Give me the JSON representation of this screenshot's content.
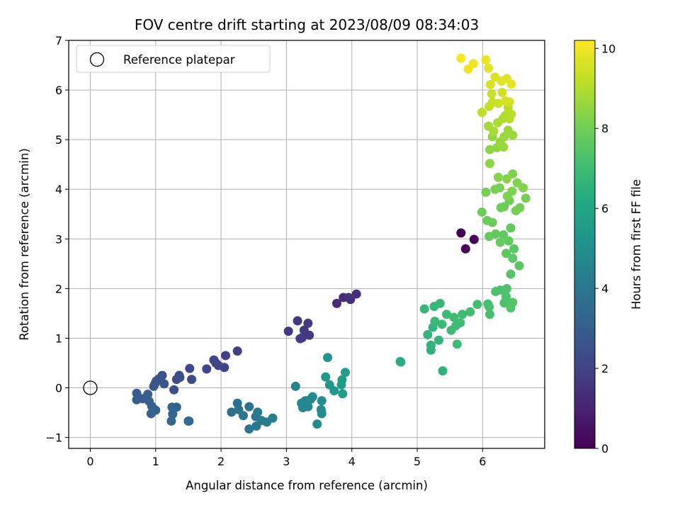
{
  "chart_data": {
    "type": "scatter",
    "title": "FOV centre drift starting at 2023/08/09 08:34:03",
    "xlabel": "Angular distance from reference (arcmin)",
    "ylabel": "Rotation from reference (arcmin)",
    "xlim": [
      -0.33,
      6.95
    ],
    "ylim": [
      -1.22,
      7.0
    ],
    "xticks": [
      0,
      1,
      2,
      3,
      4,
      5,
      6
    ],
    "yticks": [
      -1,
      0,
      1,
      2,
      3,
      4,
      5,
      6,
      7
    ],
    "grid": true,
    "legend": {
      "placement": "top-left",
      "entries": [
        "Reference platepar"
      ]
    },
    "reference_point": {
      "x": 0,
      "y": 0,
      "label": "Reference platepar"
    },
    "colorbar": {
      "label": "Hours from first FF file",
      "colormap": "viridis",
      "range": [
        0,
        10.2
      ],
      "ticks": [
        0,
        2,
        4,
        6,
        8,
        10
      ]
    },
    "points": [
      {
        "x": 5.67,
        "y": 3.12,
        "t": 0.0
      },
      {
        "x": 5.74,
        "y": 2.8,
        "t": 0.05
      },
      {
        "x": 5.87,
        "y": 2.99,
        "t": 0.1
      },
      {
        "x": 3.77,
        "y": 1.7,
        "t": 1.2
      },
      {
        "x": 3.87,
        "y": 1.82,
        "t": 1.25
      },
      {
        "x": 3.98,
        "y": 1.78,
        "t": 1.3
      },
      {
        "x": 4.07,
        "y": 1.89,
        "t": 1.35
      },
      {
        "x": 3.95,
        "y": 1.82,
        "t": 1.4
      },
      {
        "x": 3.03,
        "y": 1.14,
        "t": 1.6
      },
      {
        "x": 3.17,
        "y": 1.35,
        "t": 1.62
      },
      {
        "x": 3.24,
        "y": 1.01,
        "t": 1.65
      },
      {
        "x": 3.27,
        "y": 1.16,
        "t": 1.7
      },
      {
        "x": 3.33,
        "y": 1.3,
        "t": 1.72
      },
      {
        "x": 3.35,
        "y": 1.06,
        "t": 1.75
      },
      {
        "x": 3.21,
        "y": 0.99,
        "t": 1.8
      },
      {
        "x": 2.25,
        "y": 0.74,
        "t": 1.9
      },
      {
        "x": 2.07,
        "y": 0.65,
        "t": 1.95
      },
      {
        "x": 2.05,
        "y": 0.41,
        "t": 2.0
      },
      {
        "x": 1.92,
        "y": 0.5,
        "t": 2.02
      },
      {
        "x": 1.89,
        "y": 0.56,
        "t": 2.05
      },
      {
        "x": 1.78,
        "y": 0.38,
        "t": 2.1
      },
      {
        "x": 1.96,
        "y": 0.45,
        "t": 2.12
      },
      {
        "x": 1.52,
        "y": 0.39,
        "t": 2.2
      },
      {
        "x": 1.55,
        "y": 0.17,
        "t": 2.25
      },
      {
        "x": 1.36,
        "y": 0.25,
        "t": 2.3
      },
      {
        "x": 1.32,
        "y": 0.17,
        "t": 2.35
      },
      {
        "x": 1.37,
        "y": 0.21,
        "t": 2.4
      },
      {
        "x": 1.28,
        "y": -0.04,
        "t": 2.45
      },
      {
        "x": 1.1,
        "y": 0.25,
        "t": 2.5
      },
      {
        "x": 1.01,
        "y": 0.14,
        "t": 2.55
      },
      {
        "x": 1.05,
        "y": 0.18,
        "t": 2.6
      },
      {
        "x": 0.99,
        "y": 0.08,
        "t": 2.65
      },
      {
        "x": 1.13,
        "y": 0.08,
        "t": 2.7
      },
      {
        "x": 0.97,
        "y": 0.03,
        "t": 2.75
      },
      {
        "x": 0.71,
        "y": -0.11,
        "t": 2.9
      },
      {
        "x": 0.71,
        "y": -0.24,
        "t": 2.95
      },
      {
        "x": 0.8,
        "y": -0.22,
        "t": 3.0
      },
      {
        "x": 0.88,
        "y": -0.13,
        "t": 3.02
      },
      {
        "x": 0.9,
        "y": -0.27,
        "t": 3.05
      },
      {
        "x": 0.94,
        "y": -0.37,
        "t": 3.1
      },
      {
        "x": 1.0,
        "y": -0.45,
        "t": 3.12
      },
      {
        "x": 0.93,
        "y": -0.52,
        "t": 3.15
      },
      {
        "x": 1.25,
        "y": -0.39,
        "t": 3.3
      },
      {
        "x": 1.32,
        "y": -0.39,
        "t": 3.32
      },
      {
        "x": 1.26,
        "y": -0.53,
        "t": 3.35
      },
      {
        "x": 1.24,
        "y": -0.67,
        "t": 3.4
      },
      {
        "x": 1.51,
        "y": -0.67,
        "t": 3.45
      },
      {
        "x": 1.5,
        "y": -0.67,
        "t": 3.5
      },
      {
        "x": 2.16,
        "y": -0.49,
        "t": 3.8
      },
      {
        "x": 2.25,
        "y": -0.31,
        "t": 3.85
      },
      {
        "x": 2.27,
        "y": -0.44,
        "t": 3.9
      },
      {
        "x": 2.34,
        "y": -0.56,
        "t": 3.95
      },
      {
        "x": 2.43,
        "y": -0.38,
        "t": 4.0
      },
      {
        "x": 2.43,
        "y": -0.83,
        "t": 4.05
      },
      {
        "x": 2.53,
        "y": -0.58,
        "t": 4.1
      },
      {
        "x": 2.56,
        "y": -0.49,
        "t": 4.12
      },
      {
        "x": 2.54,
        "y": -0.77,
        "t": 4.15
      },
      {
        "x": 2.62,
        "y": -0.66,
        "t": 4.2
      },
      {
        "x": 2.7,
        "y": -0.69,
        "t": 4.25
      },
      {
        "x": 2.79,
        "y": -0.61,
        "t": 4.3
      },
      {
        "x": 3.14,
        "y": 0.03,
        "t": 4.6
      },
      {
        "x": 3.23,
        "y": -0.31,
        "t": 4.65
      },
      {
        "x": 3.25,
        "y": -0.4,
        "t": 4.7
      },
      {
        "x": 3.29,
        "y": -0.26,
        "t": 4.72
      },
      {
        "x": 3.33,
        "y": -0.38,
        "t": 4.75
      },
      {
        "x": 3.37,
        "y": -0.23,
        "t": 4.78
      },
      {
        "x": 3.4,
        "y": -0.18,
        "t": 4.8
      },
      {
        "x": 3.47,
        "y": -0.73,
        "t": 4.85
      },
      {
        "x": 3.54,
        "y": -0.26,
        "t": 4.9
      },
      {
        "x": 3.53,
        "y": -0.44,
        "t": 4.92
      },
      {
        "x": 3.54,
        "y": -0.52,
        "t": 4.95
      },
      {
        "x": 3.63,
        "y": 0.61,
        "t": 5.3
      },
      {
        "x": 3.6,
        "y": 0.22,
        "t": 5.35
      },
      {
        "x": 3.66,
        "y": 0.06,
        "t": 5.4
      },
      {
        "x": 3.73,
        "y": -0.06,
        "t": 5.45
      },
      {
        "x": 3.84,
        "y": 0.06,
        "t": 5.5
      },
      {
        "x": 3.85,
        "y": 0.16,
        "t": 5.55
      },
      {
        "x": 3.9,
        "y": 0.31,
        "t": 5.6
      },
      {
        "x": 3.86,
        "y": -0.12,
        "t": 5.65
      },
      {
        "x": 4.74,
        "y": 0.53,
        "t": 6.3
      },
      {
        "x": 4.75,
        "y": 0.52,
        "t": 6.32
      },
      {
        "x": 5.39,
        "y": 0.34,
        "t": 6.5
      },
      {
        "x": 5.21,
        "y": 0.76,
        "t": 6.55
      },
      {
        "x": 5.21,
        "y": 0.86,
        "t": 6.6
      },
      {
        "x": 5.16,
        "y": 1.07,
        "t": 6.65
      },
      {
        "x": 5.24,
        "y": 1.22,
        "t": 6.68
      },
      {
        "x": 5.33,
        "y": 0.96,
        "t": 6.7
      },
      {
        "x": 5.11,
        "y": 1.59,
        "t": 6.75
      },
      {
        "x": 5.26,
        "y": 1.64,
        "t": 6.78
      },
      {
        "x": 5.35,
        "y": 1.7,
        "t": 6.8
      },
      {
        "x": 5.27,
        "y": 1.34,
        "t": 6.82
      },
      {
        "x": 5.38,
        "y": 1.28,
        "t": 6.85
      },
      {
        "x": 5.45,
        "y": 1.48,
        "t": 6.88
      },
      {
        "x": 5.52,
        "y": 1.16,
        "t": 6.9
      },
      {
        "x": 5.59,
        "y": 1.25,
        "t": 6.92
      },
      {
        "x": 5.61,
        "y": 0.88,
        "t": 6.95
      },
      {
        "x": 5.56,
        "y": 1.42,
        "t": 6.98
      },
      {
        "x": 5.66,
        "y": 1.31,
        "t": 7.0
      },
      {
        "x": 5.69,
        "y": 1.48,
        "t": 7.02
      },
      {
        "x": 5.81,
        "y": 1.53,
        "t": 7.05
      },
      {
        "x": 5.92,
        "y": 1.68,
        "t": 7.08
      },
      {
        "x": 6.08,
        "y": 1.69,
        "t": 7.15
      },
      {
        "x": 6.11,
        "y": 1.48,
        "t": 7.2
      },
      {
        "x": 6.1,
        "y": 1.63,
        "t": 7.22
      },
      {
        "x": 6.2,
        "y": 1.94,
        "t": 7.25
      },
      {
        "x": 6.27,
        "y": 1.97,
        "t": 7.28
      },
      {
        "x": 6.33,
        "y": 1.71,
        "t": 7.3
      },
      {
        "x": 6.36,
        "y": 1.84,
        "t": 7.32
      },
      {
        "x": 6.37,
        "y": 2.0,
        "t": 7.35
      },
      {
        "x": 6.43,
        "y": 1.61,
        "t": 7.38
      },
      {
        "x": 6.46,
        "y": 1.72,
        "t": 7.4
      },
      {
        "x": 6.43,
        "y": 2.29,
        "t": 7.5
      },
      {
        "x": 6.46,
        "y": 2.61,
        "t": 7.55
      },
      {
        "x": 6.48,
        "y": 2.8,
        "t": 7.58
      },
      {
        "x": 6.56,
        "y": 2.46,
        "t": 7.6
      },
      {
        "x": 6.36,
        "y": 2.71,
        "t": 7.62
      },
      {
        "x": 6.32,
        "y": 3.08,
        "t": 7.65
      },
      {
        "x": 6.4,
        "y": 2.96,
        "t": 7.68
      },
      {
        "x": 6.43,
        "y": 3.22,
        "t": 7.7
      },
      {
        "x": 6.2,
        "y": 3.1,
        "t": 7.72
      },
      {
        "x": 6.1,
        "y": 3.05,
        "t": 7.75
      },
      {
        "x": 6.27,
        "y": 2.93,
        "t": 7.78
      },
      {
        "x": 5.99,
        "y": 3.54,
        "t": 7.85
      },
      {
        "x": 6.07,
        "y": 3.37,
        "t": 7.88
      },
      {
        "x": 6.15,
        "y": 3.33,
        "t": 7.9
      },
      {
        "x": 6.28,
        "y": 3.63,
        "t": 7.92
      },
      {
        "x": 6.33,
        "y": 3.65,
        "t": 7.95
      },
      {
        "x": 6.41,
        "y": 3.77,
        "t": 7.98
      },
      {
        "x": 6.51,
        "y": 3.57,
        "t": 8.0
      },
      {
        "x": 6.57,
        "y": 3.63,
        "t": 8.02
      },
      {
        "x": 6.66,
        "y": 3.82,
        "t": 8.05
      },
      {
        "x": 6.05,
        "y": 3.94,
        "t": 8.1
      },
      {
        "x": 6.19,
        "y": 4.0,
        "t": 8.12
      },
      {
        "x": 6.26,
        "y": 4.03,
        "t": 8.15
      },
      {
        "x": 6.38,
        "y": 3.86,
        "t": 8.18
      },
      {
        "x": 6.45,
        "y": 3.96,
        "t": 8.2
      },
      {
        "x": 6.53,
        "y": 4.13,
        "t": 8.22
      },
      {
        "x": 6.46,
        "y": 4.31,
        "t": 8.25
      },
      {
        "x": 6.62,
        "y": 4.03,
        "t": 8.28
      },
      {
        "x": 6.24,
        "y": 4.24,
        "t": 8.3
      },
      {
        "x": 6.37,
        "y": 4.21,
        "t": 8.32
      },
      {
        "x": 6.11,
        "y": 4.52,
        "t": 8.4
      },
      {
        "x": 6.11,
        "y": 4.8,
        "t": 8.45
      },
      {
        "x": 6.22,
        "y": 4.84,
        "t": 8.5
      },
      {
        "x": 6.15,
        "y": 5.06,
        "t": 8.55
      },
      {
        "x": 6.27,
        "y": 4.96,
        "t": 8.6
      },
      {
        "x": 6.32,
        "y": 4.85,
        "t": 8.62
      },
      {
        "x": 6.33,
        "y": 5.06,
        "t": 8.65
      },
      {
        "x": 6.39,
        "y": 5.19,
        "t": 8.68
      },
      {
        "x": 6.46,
        "y": 5.09,
        "t": 8.7
      },
      {
        "x": 6.09,
        "y": 5.27,
        "t": 8.8
      },
      {
        "x": 6.17,
        "y": 5.17,
        "t": 8.85
      },
      {
        "x": 6.23,
        "y": 5.34,
        "t": 8.9
      },
      {
        "x": 6.31,
        "y": 5.42,
        "t": 8.95
      },
      {
        "x": 6.35,
        "y": 5.49,
        "t": 9.0
      },
      {
        "x": 6.41,
        "y": 5.42,
        "t": 9.05
      },
      {
        "x": 6.44,
        "y": 5.51,
        "t": 9.1
      },
      {
        "x": 6.39,
        "y": 5.65,
        "t": 9.12
      },
      {
        "x": 5.99,
        "y": 5.55,
        "t": 9.2
      },
      {
        "x": 6.1,
        "y": 5.67,
        "t": 9.25
      },
      {
        "x": 6.15,
        "y": 5.75,
        "t": 9.3
      },
      {
        "x": 6.14,
        "y": 5.92,
        "t": 9.35
      },
      {
        "x": 6.24,
        "y": 5.73,
        "t": 9.4
      },
      {
        "x": 6.3,
        "y": 5.95,
        "t": 9.45
      },
      {
        "x": 6.35,
        "y": 5.78,
        "t": 9.5
      },
      {
        "x": 6.41,
        "y": 5.76,
        "t": 9.55
      },
      {
        "x": 6.12,
        "y": 6.11,
        "t": 9.6
      },
      {
        "x": 6.19,
        "y": 6.26,
        "t": 9.65
      },
      {
        "x": 6.29,
        "y": 6.18,
        "t": 9.7
      },
      {
        "x": 6.37,
        "y": 6.23,
        "t": 9.75
      },
      {
        "x": 6.44,
        "y": 6.12,
        "t": 9.8
      },
      {
        "x": 6.09,
        "y": 6.44,
        "t": 9.85
      },
      {
        "x": 6.05,
        "y": 6.61,
        "t": 9.9
      },
      {
        "x": 5.86,
        "y": 6.53,
        "t": 9.95
      },
      {
        "x": 5.78,
        "y": 6.42,
        "t": 10.0
      },
      {
        "x": 5.67,
        "y": 6.64,
        "t": 10.1
      }
    ]
  }
}
